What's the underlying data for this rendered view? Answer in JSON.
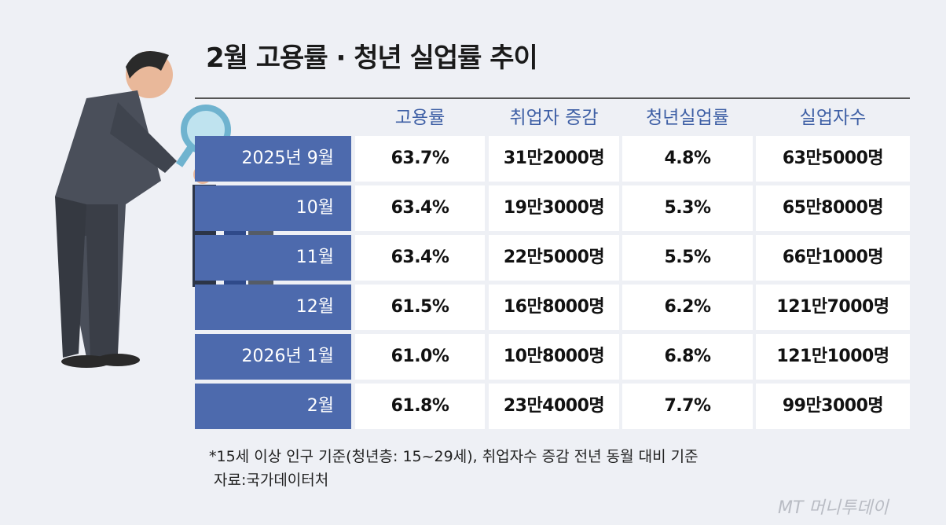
{
  "header": {
    "title": "2월 고용률 · 청년 실업률 추이"
  },
  "table": {
    "columns": [
      "고용률",
      "취업자 증감",
      "청년실업률",
      "실업자수"
    ],
    "rows": [
      [
        "2025년 9월",
        "63.7%",
        "31만2000명",
        "4.8%",
        "63만5000명"
      ],
      [
        "10월",
        "63.4%",
        "19만3000명",
        "5.3%",
        "65만8000명"
      ],
      [
        "11월",
        "63.4%",
        "22만5000명",
        "5.5%",
        "66만1000명"
      ],
      [
        "12월",
        "61.5%",
        "16만8000명",
        "6.2%",
        "121만7000명"
      ],
      [
        "2026년 1월",
        "61.0%",
        "10만8000명",
        "6.8%",
        "121만1000명"
      ],
      [
        "2월",
        "61.8%",
        "23만4000명",
        "7.7%",
        "99만3000명"
      ]
    ]
  },
  "footer": {
    "note": "*15세 이상 인구 기준(청년층: 15~29세), 취업자수 증감 전년 동월 대비 기준",
    "source": "자료:국가데이터처",
    "logo": "MT 머니투데이"
  }
}
